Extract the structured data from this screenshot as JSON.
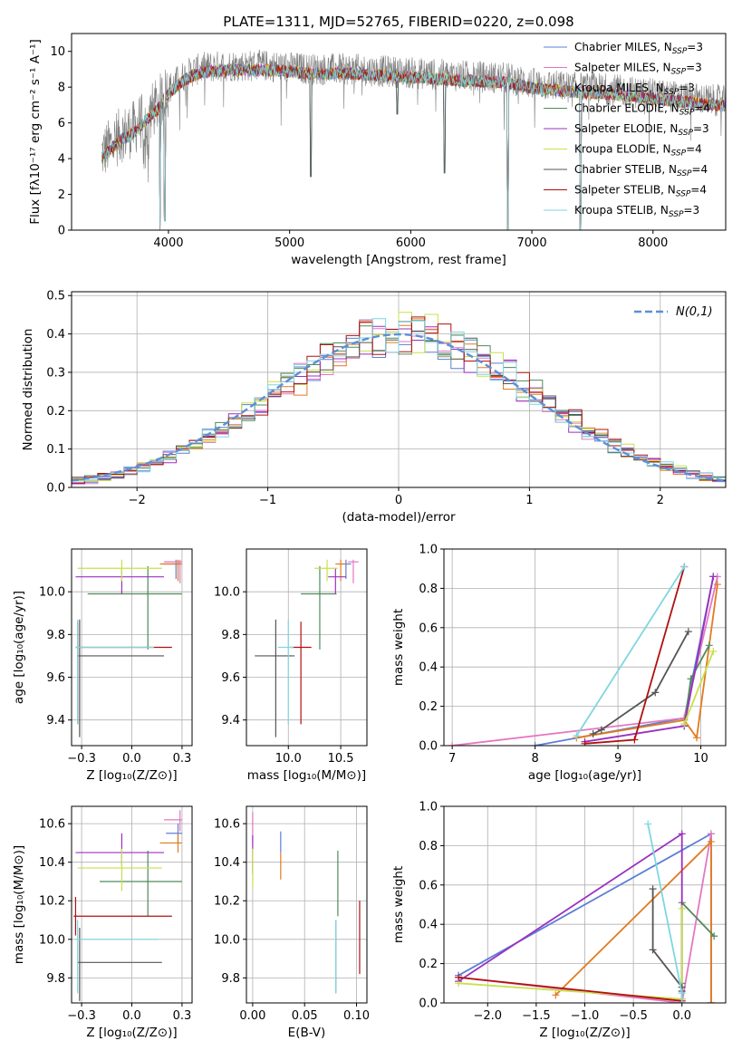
{
  "figure": {
    "title": "PLATE=1311, MJD=52765, FIBERID=0220, z=0.098"
  },
  "colors": {
    "chabrier_miles": "#5b7fd6",
    "salpeter_miles": "#e377c2",
    "kroupa_miles": "#e07b20",
    "chabrier_elodie": "#4f8a5b",
    "salpeter_elodie": "#9b30c0",
    "kroupa_elodie": "#c8e04a",
    "chabrier_stelib": "#555555",
    "salpeter_stelib": "#b01010",
    "kroupa_stelib": "#7fd6e0",
    "spectrum": "#808080",
    "normal": "#5b8fd6"
  },
  "legend_spectrum": [
    {
      "pre": "Chabrier MILES, N",
      "sub": "SSP",
      "post": "=3",
      "color": "#5b7fd6"
    },
    {
      "pre": "Salpeter MILES, N",
      "sub": "SSP",
      "post": "=3",
      "color": "#e377c2"
    },
    {
      "pre": "Kroupa MILES, N",
      "sub": "SSP",
      "post": "=3",
      "color": "#e07b20"
    },
    {
      "pre": "Chabrier ELODIE, N",
      "sub": "SSP",
      "post": "=4",
      "color": "#4f8a5b"
    },
    {
      "pre": "Salpeter ELODIE, N",
      "sub": "SSP",
      "post": "=3",
      "color": "#9b30c0"
    },
    {
      "pre": "Kroupa ELODIE, N",
      "sub": "SSP",
      "post": "=4",
      "color": "#c8e04a"
    },
    {
      "pre": "Chabrier STELIB, N",
      "sub": "SSP",
      "post": "=4",
      "color": "#555555"
    },
    {
      "pre": "Salpeter STELIB, N",
      "sub": "SSP",
      "post": "=4",
      "color": "#b01010"
    },
    {
      "pre": "Kroupa STELIB, N",
      "sub": "SSP",
      "post": "=3",
      "color": "#7fd6e0"
    }
  ],
  "chart_data": [
    {
      "id": "spectrum",
      "type": "line",
      "xlabel": "wavelength [Angstrom, rest frame]",
      "ylabel": "Flux [fλ10⁻¹⁷ erg cm⁻² s⁻¹ A⁻¹]",
      "xlim": [
        3200,
        8600
      ],
      "ylim": [
        0,
        11
      ],
      "xticks": [
        4000,
        5000,
        6000,
        7000,
        8000
      ],
      "yticks": [
        0,
        2,
        4,
        6,
        8,
        10
      ],
      "observed_anchor": {
        "x": [
          3450,
          3500,
          3600,
          3700,
          3800,
          3900,
          4000,
          4100,
          4200,
          4300,
          4500,
          4800,
          5000,
          5200,
          5500,
          6000,
          6500,
          6800,
          7000,
          7300,
          7600,
          8000,
          8300,
          8600
        ],
        "y": [
          4.3,
          4.6,
          5.3,
          5.6,
          6.3,
          6.9,
          7.9,
          8.5,
          8.9,
          9.1,
          9.2,
          9.2,
          9.1,
          9.0,
          9.0,
          8.8,
          8.6,
          8.5,
          8.2,
          8.0,
          7.9,
          7.6,
          7.4,
          7.2
        ]
      },
      "model_dips": [
        {
          "x": 3930,
          "y": 0.0
        },
        {
          "x": 3970,
          "y": 0.5
        },
        {
          "x": 5175,
          "y": 3.0
        },
        {
          "x": 5890,
          "y": 6.5
        },
        {
          "x": 6280,
          "y": 3.2
        },
        {
          "x": 6800,
          "y": 0.0
        },
        {
          "x": 7400,
          "y": 0.0
        }
      ]
    },
    {
      "id": "residuals",
      "type": "histogram",
      "xlabel": "(data-model)/error",
      "ylabel": "Normed distribution",
      "xlim": [
        -2.5,
        2.5
      ],
      "ylim": [
        0,
        0.51
      ],
      "xticks": [
        -2,
        -1,
        0,
        1,
        2
      ],
      "yticks": [
        0.0,
        0.1,
        0.2,
        0.3,
        0.4,
        0.5
      ],
      "bin_width": 0.1,
      "legend": "N(0,1)"
    },
    {
      "id": "age_vs_Z",
      "type": "errorbar",
      "xlabel": "Z [log₁₀(Z/Z⊙)]",
      "ylabel": "age  [log₁₀(age/yr)]",
      "xlim": [
        -0.3,
        0.3
      ],
      "ylim": [
        9.28,
        10.2
      ],
      "xticks": [
        -0.25,
        0.0,
        0.25
      ],
      "yticks": [
        9.4,
        9.6,
        9.8,
        10.0
      ],
      "points": [
        {
          "model": "chabrier_miles",
          "x": 0.22,
          "xerr": [
            0.06,
            0.02
          ],
          "y": 10.13,
          "yerr": [
            0.07,
            0.02
          ]
        },
        {
          "model": "salpeter_miles",
          "x": 0.24,
          "xerr": [
            0.08,
            0.01
          ],
          "y": 10.14,
          "yerr": [
            0.1,
            0.01
          ]
        },
        {
          "model": "kroupa_miles",
          "x": 0.23,
          "xerr": [
            0.09,
            0.02
          ],
          "y": 10.13,
          "yerr": [
            0.08,
            0.02
          ]
        },
        {
          "model": "chabrier_elodie",
          "x": 0.08,
          "xerr": [
            0.3,
            0.17
          ],
          "y": 9.99,
          "yerr": [
            0.26,
            0.13
          ]
        },
        {
          "model": "salpeter_elodie",
          "x": -0.05,
          "xerr": [
            0.23,
            0.21
          ],
          "y": 10.07,
          "yerr": [
            0.08,
            0.04
          ]
        },
        {
          "model": "kroupa_elodie",
          "x": -0.05,
          "xerr": [
            0.22,
            0.2
          ],
          "y": 10.11,
          "yerr": [
            0.06,
            0.04
          ]
        },
        {
          "model": "chabrier_stelib",
          "x": -0.26,
          "xerr": [
            0.01,
            0.42
          ],
          "y": 9.7,
          "yerr": [
            0.38,
            0.17
          ]
        },
        {
          "model": "salpeter_stelib",
          "x": -0.27,
          "xerr": [
            0.01,
            0.47
          ],
          "y": 9.74,
          "yerr": [
            0.36,
            0.12
          ]
        },
        {
          "model": "kroupa_stelib",
          "x": -0.27,
          "xerr": [
            0.01,
            0.38
          ],
          "y": 9.74,
          "yerr": [
            0.36,
            0.13
          ]
        }
      ]
    },
    {
      "id": "age_vs_mass",
      "type": "errorbar",
      "xlabel": "mass [log₁₀(M/M⊙)]",
      "ylabel": "",
      "xlim": [
        9.6,
        10.75
      ],
      "ylim": [
        9.28,
        10.2
      ],
      "xticks": [
        10.0,
        10.5
      ],
      "yticks": [
        9.4,
        9.6,
        9.8,
        10.0
      ],
      "points": [
        {
          "model": "chabrier_miles",
          "x": 10.55,
          "xerr": [
            0.05,
            0.05
          ],
          "y": 10.13,
          "yerr": [
            0.07,
            0.02
          ]
        },
        {
          "model": "salpeter_miles",
          "x": 10.62,
          "xerr": [
            0.05,
            0.05
          ],
          "y": 10.14,
          "yerr": [
            0.1,
            0.01
          ]
        },
        {
          "model": "kroupa_miles",
          "x": 10.5,
          "xerr": [
            0.05,
            0.05
          ],
          "y": 10.13,
          "yerr": [
            0.08,
            0.02
          ]
        },
        {
          "model": "chabrier_elodie",
          "x": 10.3,
          "xerr": [
            0.18,
            0.16
          ],
          "y": 9.99,
          "yerr": [
            0.26,
            0.13
          ]
        },
        {
          "model": "salpeter_elodie",
          "x": 10.45,
          "xerr": [
            0.07,
            0.1
          ],
          "y": 10.07,
          "yerr": [
            0.08,
            0.04
          ]
        },
        {
          "model": "kroupa_elodie",
          "x": 10.37,
          "xerr": [
            0.12,
            0.1
          ],
          "y": 10.11,
          "yerr": [
            0.06,
            0.04
          ]
        },
        {
          "model": "chabrier_stelib",
          "x": 9.88,
          "xerr": [
            0.2,
            0.18
          ],
          "y": 9.7,
          "yerr": [
            0.38,
            0.17
          ]
        },
        {
          "model": "salpeter_stelib",
          "x": 10.12,
          "xerr": [
            0.1,
            0.1
          ],
          "y": 9.74,
          "yerr": [
            0.36,
            0.12
          ]
        },
        {
          "model": "kroupa_stelib",
          "x": 10.0,
          "xerr": [
            0.1,
            0.05
          ],
          "y": 9.74,
          "yerr": [
            0.36,
            0.13
          ]
        }
      ]
    },
    {
      "id": "weight_vs_age",
      "type": "line",
      "xlabel": "age  [log₁₀(age/yr)]",
      "ylabel": "mass weight",
      "xlim": [
        6.9,
        10.3
      ],
      "ylim": [
        0,
        1.0
      ],
      "xticks": [
        7,
        8,
        9,
        10
      ],
      "yticks": [
        0.0,
        0.2,
        0.4,
        0.6,
        0.8,
        1.0
      ],
      "series": [
        {
          "model": "chabrier_miles",
          "x": [
            8.0,
            9.8,
            10.15
          ],
          "y": [
            0.0,
            0.14,
            0.86
          ]
        },
        {
          "model": "salpeter_miles",
          "x": [
            7.0,
            9.8,
            10.2
          ],
          "y": [
            0.0,
            0.14,
            0.86
          ]
        },
        {
          "model": "kroupa_miles",
          "x": [
            8.5,
            9.8,
            9.95,
            10.2
          ],
          "y": [
            0.04,
            0.13,
            0.04,
            0.82
          ]
        },
        {
          "model": "chabrier_elodie",
          "x": [
            9.8,
            9.88,
            10.1
          ],
          "y": [
            0.1,
            0.34,
            0.51
          ]
        },
        {
          "model": "salpeter_elodie",
          "x": [
            8.6,
            9.8,
            10.15
          ],
          "y": [
            0.02,
            0.1,
            0.86
          ]
        },
        {
          "model": "kroupa_elodie",
          "x": [
            9.8,
            10.15
          ],
          "y": [
            0.11,
            0.48
          ]
        },
        {
          "model": "chabrier_stelib",
          "x": [
            8.7,
            8.8,
            9.45,
            9.85
          ],
          "y": [
            0.06,
            0.08,
            0.27,
            0.58
          ]
        },
        {
          "model": "salpeter_stelib",
          "x": [
            8.6,
            9.2,
            9.8
          ],
          "y": [
            0.01,
            0.03,
            0.91
          ]
        },
        {
          "model": "kroupa_stelib",
          "x": [
            8.5,
            9.8
          ],
          "y": [
            0.05,
            0.91
          ]
        }
      ]
    },
    {
      "id": "mass_vs_Z",
      "type": "errorbar",
      "xlabel": "Z [log₁₀(Z/Z⊙)]",
      "ylabel": "mass [log₁₀(M/M⊙)]",
      "xlim": [
        -0.3,
        0.3
      ],
      "ylim": [
        9.67,
        10.69
      ],
      "xticks": [
        -0.25,
        0.0,
        0.25
      ],
      "yticks": [
        9.8,
        10.0,
        10.2,
        10.4,
        10.6
      ],
      "points": [
        {
          "model": "chabrier_miles",
          "x": 0.23,
          "xerr": [
            0.06,
            0.02
          ],
          "y": 10.55,
          "yerr": [
            0.05,
            0.05
          ]
        },
        {
          "model": "salpeter_miles",
          "x": 0.24,
          "xerr": [
            0.08,
            0.01
          ],
          "y": 10.62,
          "yerr": [
            0.06,
            0.05
          ]
        },
        {
          "model": "kroupa_miles",
          "x": 0.23,
          "xerr": [
            0.09,
            0.02
          ],
          "y": 10.5,
          "yerr": [
            0.05,
            0.05
          ]
        },
        {
          "model": "chabrier_elodie",
          "x": 0.08,
          "xerr": [
            0.24,
            0.17
          ],
          "y": 10.3,
          "yerr": [
            0.18,
            0.16
          ]
        },
        {
          "model": "salpeter_elodie",
          "x": -0.05,
          "xerr": [
            0.23,
            0.21
          ],
          "y": 10.45,
          "yerr": [
            0.07,
            0.1
          ]
        },
        {
          "model": "kroupa_elodie",
          "x": -0.05,
          "xerr": [
            0.22,
            0.2
          ],
          "y": 10.37,
          "yerr": [
            0.12,
            0.1
          ]
        },
        {
          "model": "chabrier_stelib",
          "x": -0.26,
          "xerr": [
            0.01,
            0.41
          ],
          "y": 9.88,
          "yerr": [
            0.2,
            0.18
          ]
        },
        {
          "model": "salpeter_stelib",
          "x": -0.28,
          "xerr": [
            0.01,
            0.48
          ],
          "y": 10.12,
          "yerr": [
            0.1,
            0.1
          ]
        },
        {
          "model": "kroupa_stelib",
          "x": -0.27,
          "xerr": [
            0.01,
            0.4
          ],
          "y": 10.0,
          "yerr": [
            0.28,
            0.1
          ]
        }
      ]
    },
    {
      "id": "mass_vs_ebv",
      "type": "errorbar",
      "xlabel": "E(B-V)",
      "ylabel": "",
      "xlim": [
        -0.006,
        0.11
      ],
      "ylim": [
        9.67,
        10.69
      ],
      "xticks": [
        0.0,
        0.05,
        0.1
      ],
      "yticks": [
        9.8,
        10.0,
        10.2,
        10.4,
        10.6
      ],
      "points": [
        {
          "model": "chabrier_miles",
          "x": 0.027,
          "xerr": [
            0,
            0
          ],
          "y": 10.5,
          "yerr": [
            0.05,
            0.06
          ]
        },
        {
          "model": "salpeter_miles",
          "x": 0.0,
          "xerr": [
            0,
            0
          ],
          "y": 10.57,
          "yerr": [
            0.07,
            0.09
          ]
        },
        {
          "model": "kroupa_miles",
          "x": 0.027,
          "xerr": [
            0,
            0
          ],
          "y": 10.38,
          "yerr": [
            0.07,
            0.07
          ]
        },
        {
          "model": "chabrier_elodie",
          "x": 0.082,
          "xerr": [
            0,
            0
          ],
          "y": 10.28,
          "yerr": [
            0.16,
            0.18
          ]
        },
        {
          "model": "salpeter_elodie",
          "x": 0.0,
          "xerr": [
            0,
            0
          ],
          "y": 10.44,
          "yerr": [
            0.1,
            0.1
          ]
        },
        {
          "model": "kroupa_elodie",
          "x": 0.0,
          "xerr": [
            0,
            0
          ],
          "y": 10.37,
          "yerr": [
            0.1,
            0.1
          ]
        },
        {
          "model": "chabrier_stelib",
          "x": 0.08,
          "xerr": [
            0,
            0
          ],
          "y": 9.9,
          "yerr": [
            0.18,
            0.2
          ]
        },
        {
          "model": "salpeter_stelib",
          "x": 0.103,
          "xerr": [
            0,
            0
          ],
          "y": 10.0,
          "yerr": [
            0.18,
            0.2
          ]
        },
        {
          "model": "kroupa_stelib",
          "x": 0.08,
          "xerr": [
            0,
            0
          ],
          "y": 9.9,
          "yerr": [
            0.18,
            0.2
          ]
        }
      ]
    },
    {
      "id": "weight_vs_Z",
      "type": "line",
      "xlabel": "Z [log₁₀(Z/Z⊙)]",
      "ylabel": "mass weight",
      "xlim": [
        -2.45,
        0.45
      ],
      "ylim": [
        0,
        1.0
      ],
      "xticks": [
        -2.0,
        -1.5,
        -1.0,
        -0.5,
        0.0
      ],
      "yticks": [
        0.0,
        0.2,
        0.4,
        0.6,
        0.8,
        1.0
      ],
      "series": [
        {
          "model": "chabrier_miles",
          "x": [
            -2.3,
            0.3,
            0.3
          ],
          "y": [
            0.14,
            0.86,
            0.0
          ]
        },
        {
          "model": "salpeter_miles",
          "x": [
            -2.3,
            0.0,
            0.3,
            0.3
          ],
          "y": [
            0.13,
            0.0,
            0.86,
            0.0
          ]
        },
        {
          "model": "kroupa_miles",
          "x": [
            -1.3,
            0.3,
            0.3
          ],
          "y": [
            0.04,
            0.82,
            0.0
          ]
        },
        {
          "model": "chabrier_elodie",
          "x": [
            0.0,
            0.0,
            0.33
          ],
          "y": [
            0.1,
            0.51,
            0.34
          ]
        },
        {
          "model": "salpeter_elodie",
          "x": [
            -2.3,
            0.0,
            0.0
          ],
          "y": [
            0.11,
            0.86,
            0.02
          ]
        },
        {
          "model": "kroupa_elodie",
          "x": [
            -2.3,
            0.0,
            0.0
          ],
          "y": [
            0.1,
            0.02,
            0.48
          ]
        },
        {
          "model": "chabrier_stelib",
          "x": [
            -0.3,
            -0.3,
            0.0,
            0.0
          ],
          "y": [
            0.58,
            0.27,
            0.08,
            0.06
          ]
        },
        {
          "model": "salpeter_stelib",
          "x": [
            -2.3,
            0.0
          ],
          "y": [
            0.13,
            0.01
          ]
        },
        {
          "model": "kroupa_stelib",
          "x": [
            -0.35,
            0.0,
            0.0
          ],
          "y": [
            0.91,
            0.05,
            0.0
          ]
        }
      ]
    }
  ]
}
